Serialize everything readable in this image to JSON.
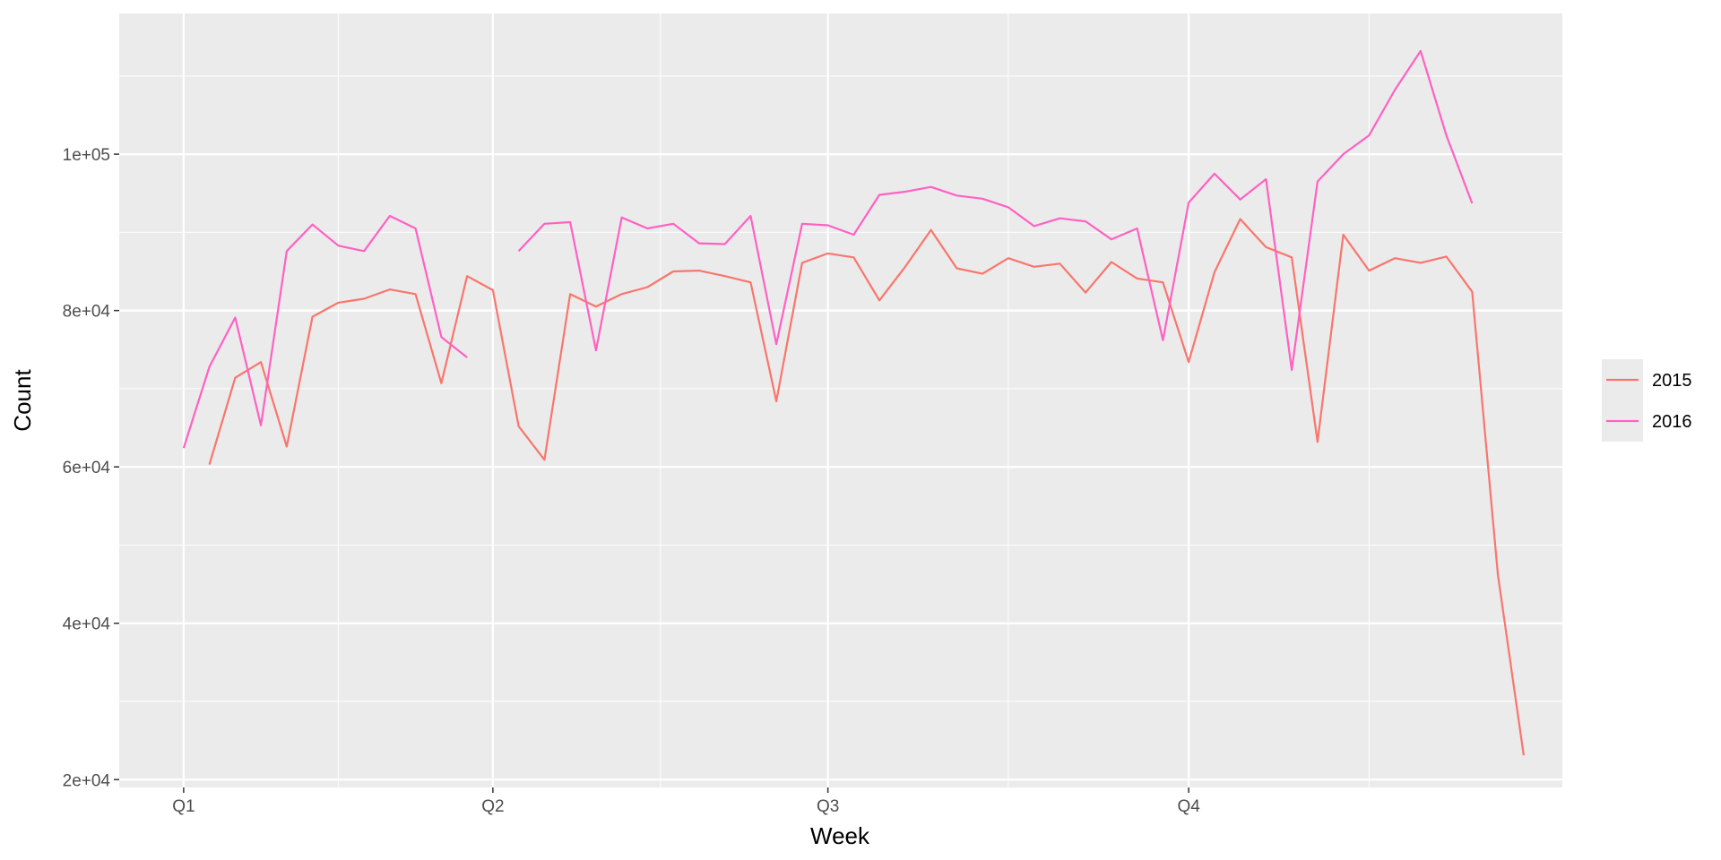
{
  "chart_data": {
    "type": "line",
    "xlabel": "Week",
    "ylabel": "Count",
    "x_ticks": [
      {
        "label": "Q1",
        "week": 1
      },
      {
        "label": "Q2",
        "week": 13
      },
      {
        "label": "Q3",
        "week": 26
      },
      {
        "label": "Q4",
        "week": 40
      }
    ],
    "x_range": [
      -1.5,
      54.5
    ],
    "ylim": [
      19000,
      118000
    ],
    "y_ticks": [
      {
        "label": "2e+04",
        "value": 20000
      },
      {
        "label": "4e+04",
        "value": 40000
      },
      {
        "label": "6e+04",
        "value": 60000
      },
      {
        "label": "8e+04",
        "value": 80000
      },
      {
        "label": "1e+05",
        "value": 100000
      }
    ],
    "grid": true,
    "legend_position": "right",
    "series": [
      {
        "name": "2015",
        "color": "#F8766D",
        "segments": [
          [
            [
              2,
              60300
            ],
            [
              3,
              71400
            ],
            [
              4,
              73400
            ],
            [
              5,
              62600
            ],
            [
              6,
              79200
            ],
            [
              7,
              81000
            ],
            [
              8,
              81500
            ],
            [
              9,
              82700
            ],
            [
              10,
              82100
            ],
            [
              11,
              70700
            ],
            [
              12,
              84400
            ],
            [
              13,
              82600
            ],
            [
              14,
              65200
            ],
            [
              15,
              60900
            ],
            [
              16,
              82100
            ],
            [
              17,
              80500
            ],
            [
              18,
              82100
            ],
            [
              19,
              83000
            ],
            [
              20,
              85000
            ],
            [
              21,
              85100
            ],
            [
              22,
              84400
            ],
            [
              23,
              83600
            ],
            [
              24,
              68400
            ],
            [
              25,
              86100
            ],
            [
              26,
              87300
            ],
            [
              27,
              86800
            ],
            [
              28,
              81300
            ],
            [
              29,
              85600
            ],
            [
              30,
              90300
            ],
            [
              31,
              85400
            ],
            [
              32,
              84700
            ],
            [
              33,
              86700
            ],
            [
              34,
              85600
            ],
            [
              35,
              86000
            ],
            [
              36,
              82300
            ],
            [
              37,
              86200
            ],
            [
              38,
              84100
            ],
            [
              39,
              83600
            ],
            [
              40,
              73400
            ],
            [
              41,
              84900
            ],
            [
              42,
              91700
            ],
            [
              43,
              88100
            ],
            [
              44,
              86800
            ],
            [
              45,
              63200
            ],
            [
              46,
              89700
            ],
            [
              47,
              85100
            ],
            [
              48,
              86700
            ],
            [
              49,
              86100
            ],
            [
              50,
              86900
            ],
            [
              51,
              82400
            ],
            [
              52,
              46200
            ],
            [
              53,
              23100
            ]
          ]
        ]
      },
      {
        "name": "2016",
        "color": "#FF61C3",
        "segments": [
          [
            [
              1,
              62400
            ],
            [
              2,
              72800
            ],
            [
              3,
              79100
            ],
            [
              4,
              65300
            ],
            [
              5,
              87600
            ],
            [
              6,
              91000
            ],
            [
              7,
              88300
            ],
            [
              8,
              87600
            ],
            [
              9,
              92100
            ],
            [
              10,
              90500
            ],
            [
              11,
              76600
            ],
            [
              12,
              74000
            ]
          ],
          [
            [
              14,
              87600
            ],
            [
              15,
              91100
            ],
            [
              16,
              91300
            ],
            [
              17,
              74900
            ],
            [
              18,
              91900
            ],
            [
              19,
              90500
            ],
            [
              20,
              91100
            ],
            [
              21,
              88600
            ],
            [
              22,
              88500
            ],
            [
              23,
              92100
            ],
            [
              24,
              75700
            ],
            [
              25,
              91100
            ],
            [
              26,
              90900
            ],
            [
              27,
              89700
            ],
            [
              28,
              94800
            ],
            [
              29,
              95200
            ],
            [
              30,
              95800
            ],
            [
              31,
              94700
            ],
            [
              32,
              94300
            ],
            [
              33,
              93200
            ],
            [
              34,
              90800
            ],
            [
              35,
              91800
            ],
            [
              36,
              91400
            ],
            [
              37,
              89100
            ],
            [
              38,
              90500
            ],
            [
              39,
              76200
            ],
            [
              40,
              93800
            ],
            [
              41,
              97500
            ],
            [
              42,
              94200
            ],
            [
              43,
              96800
            ],
            [
              44,
              72400
            ],
            [
              45,
              96500
            ],
            [
              46,
              100000
            ],
            [
              47,
              102400
            ],
            [
              48,
              108200
            ],
            [
              49,
              113200
            ],
            [
              50,
              102400
            ],
            [
              51,
              93700
            ]
          ]
        ]
      }
    ]
  }
}
